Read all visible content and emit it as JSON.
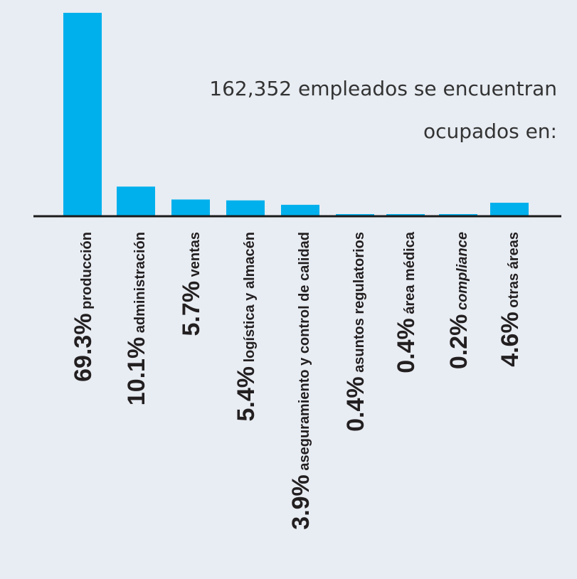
{
  "chart_data": {
    "type": "bar",
    "title": "162,352 empleados se encuentran ocupados en:",
    "title_lines": [
      "162,352 empleados se encuentran",
      "ocupados en:"
    ],
    "categories": [
      "producción",
      "administración",
      "ventas",
      "logística y almacén",
      "aseguramiento y control de calidad",
      "asuntos regulatorios",
      "área médica",
      "compliance",
      "otras áreas"
    ],
    "value_labels": [
      "69.3%",
      "10.1%",
      "5.7%",
      "5.4%",
      "3.9%",
      "0.4%",
      "0.4%",
      "0.2%",
      "4.6%"
    ],
    "values": [
      69.3,
      10.1,
      5.7,
      5.4,
      3.9,
      0.4,
      0.4,
      0.2,
      4.6
    ],
    "italic_categories": [
      "compliance"
    ],
    "unit": "%",
    "grid": false,
    "legend": "none",
    "colors": {
      "bar": "#00b0ec",
      "axis": "#1a1a1a",
      "background": "#e8edf3",
      "text": "#231f20"
    }
  }
}
